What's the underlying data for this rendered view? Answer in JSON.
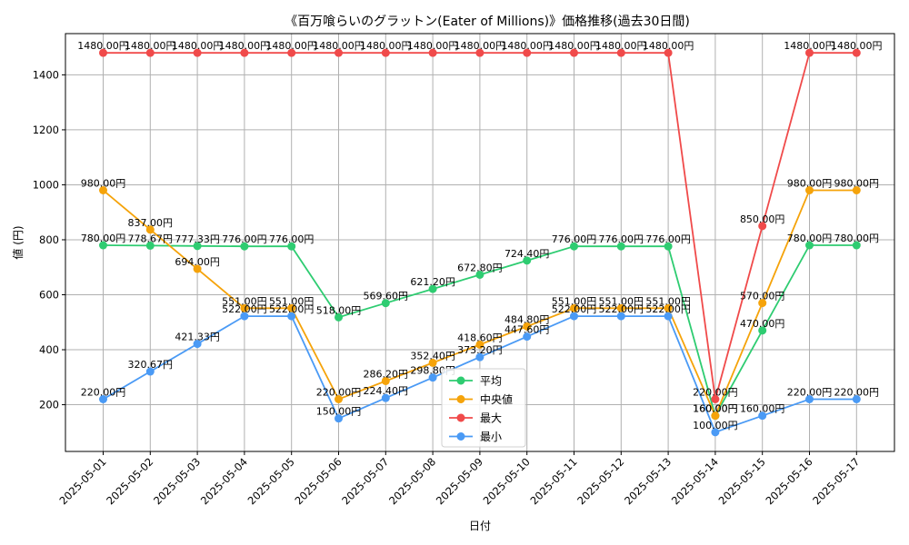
{
  "chart_data": {
    "type": "line",
    "title": "《百万喰らいのグラットン(Eater of Millions)》価格推移(過去30日間)",
    "xlabel": "日付",
    "ylabel": "値 (円)",
    "x": [
      "2025-05-01",
      "2025-05-02",
      "2025-05-03",
      "2025-05-04",
      "2025-05-05",
      "2025-05-06",
      "2025-05-07",
      "2025-05-08",
      "2025-05-09",
      "2025-05-10",
      "2025-05-11",
      "2025-05-12",
      "2025-05-13",
      "2025-05-14",
      "2025-05-15",
      "2025-05-16",
      "2025-05-17"
    ],
    "yticks": [
      200,
      400,
      600,
      800,
      1000,
      1200,
      1400
    ],
    "ylim": [
      30,
      1550
    ],
    "grid": true,
    "legend_position": "lower-center",
    "value_suffix": "円",
    "series": [
      {
        "key": "avg",
        "name": "平均",
        "color": "#2ecc71",
        "values": [
          780.0,
          778.67,
          777.33,
          776.0,
          776.0,
          518.0,
          569.6,
          621.2,
          672.8,
          724.4,
          776.0,
          776.0,
          776.0,
          160.0,
          470.0,
          780.0,
          780.0
        ]
      },
      {
        "key": "median",
        "name": "中央値",
        "color": "#f5a30a",
        "values": [
          980.0,
          837.0,
          694.0,
          551.0,
          551.0,
          220.0,
          286.2,
          352.4,
          418.6,
          484.8,
          551.0,
          551.0,
          551.0,
          160.0,
          570.0,
          980.0,
          980.0
        ]
      },
      {
        "key": "max",
        "name": "最大",
        "color": "#f04a4a",
        "values": [
          1480.0,
          1480.0,
          1480.0,
          1480.0,
          1480.0,
          1480.0,
          1480.0,
          1480.0,
          1480.0,
          1480.0,
          1480.0,
          1480.0,
          1480.0,
          220.0,
          850.0,
          1480.0,
          1480.0
        ]
      },
      {
        "key": "min",
        "name": "最小",
        "color": "#4a9af5",
        "values": [
          220.0,
          320.67,
          421.33,
          522.0,
          522.0,
          150.0,
          224.4,
          298.8,
          373.2,
          447.6,
          522.0,
          522.0,
          522.0,
          100.0,
          160.0,
          220.0,
          220.0
        ]
      }
    ]
  }
}
